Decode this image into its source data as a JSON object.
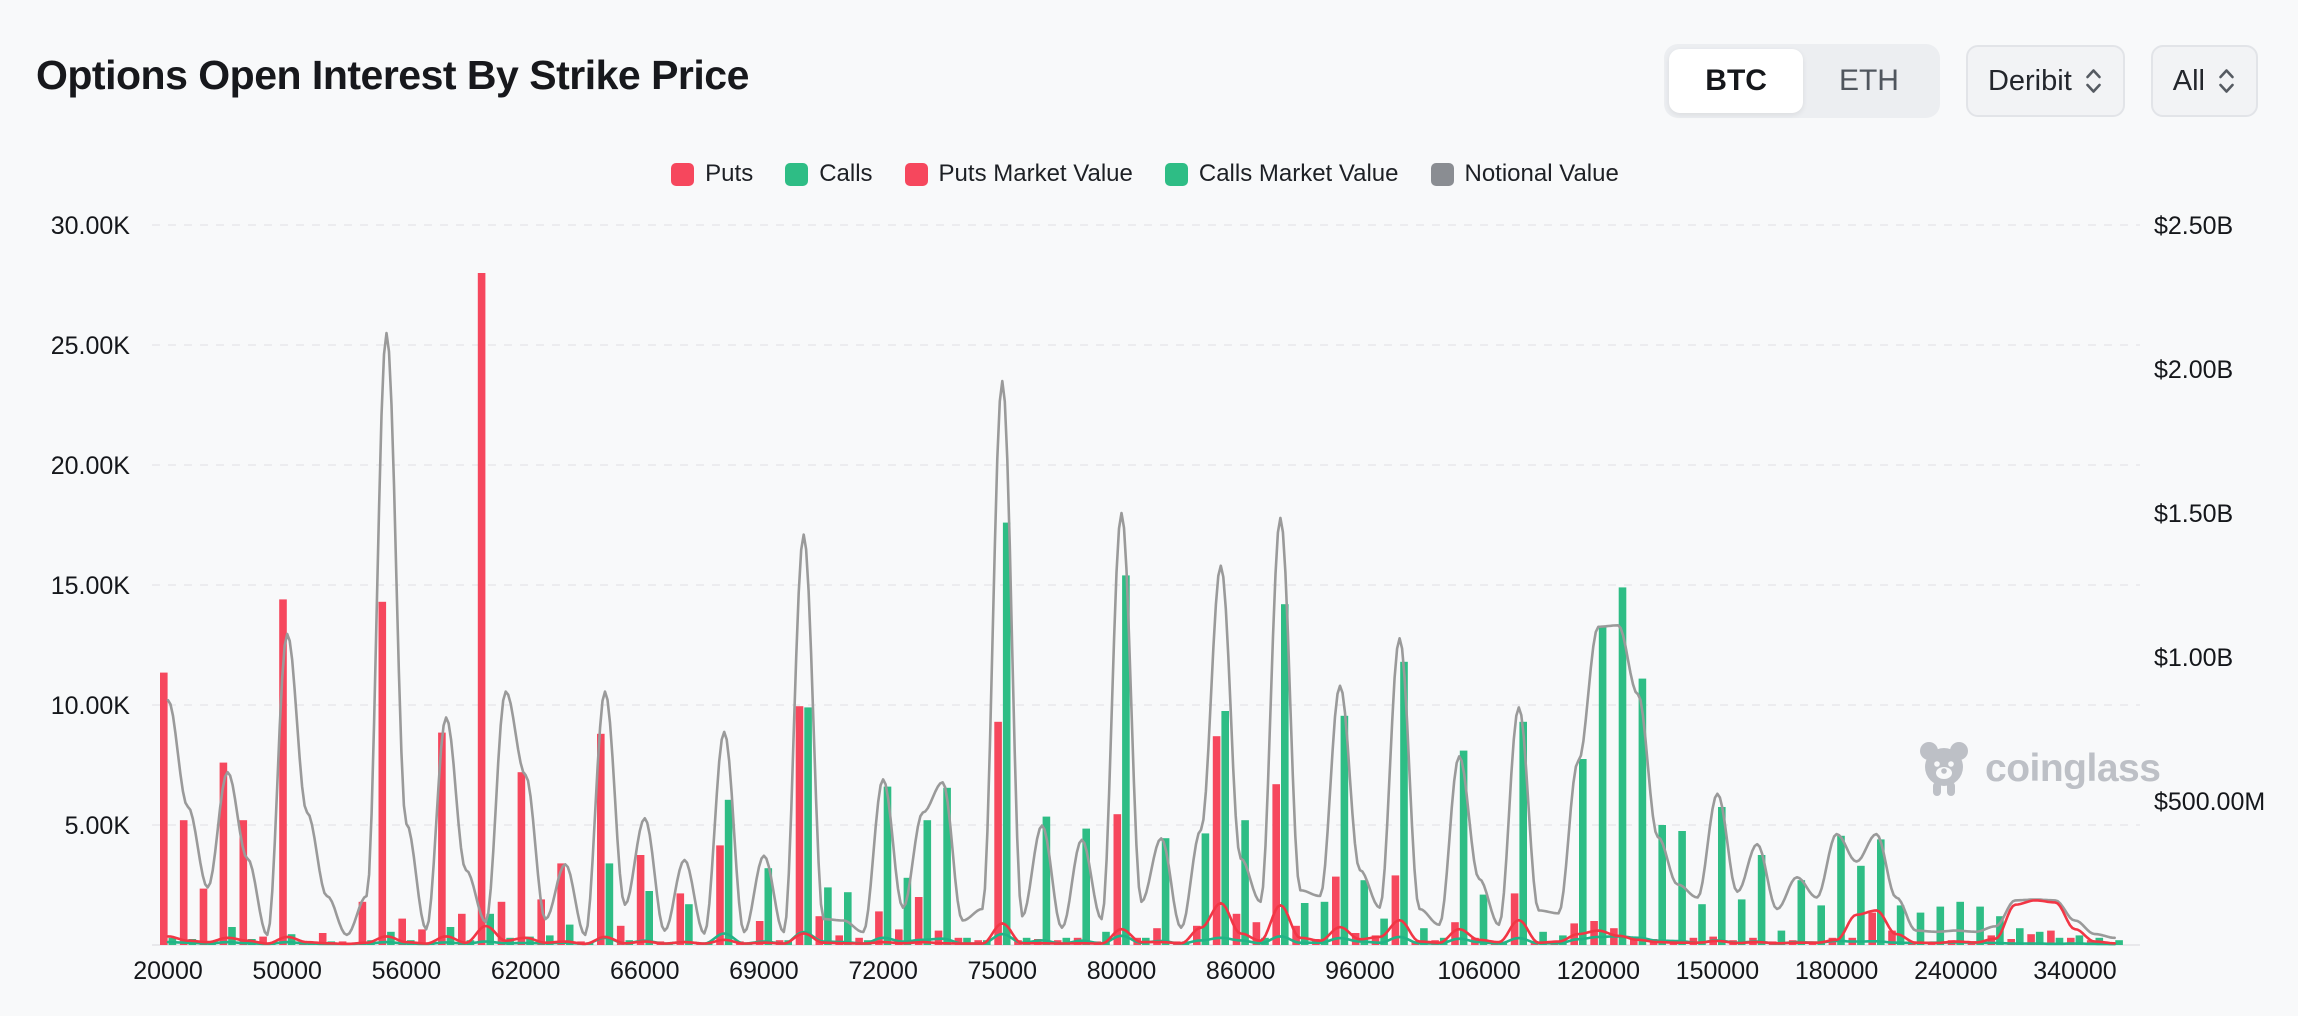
{
  "page": {
    "background": "#f8f9fa"
  },
  "header": {
    "title": "Options Open Interest By Strike Price",
    "asset_toggle": {
      "options": [
        "BTC",
        "ETH"
      ],
      "active": "BTC"
    },
    "exchange_dropdown": {
      "value": "Deribit"
    },
    "range_dropdown": {
      "value": "All"
    }
  },
  "legend": {
    "items": [
      {
        "label": "Puts",
        "color": "#F6475D"
      },
      {
        "label": "Calls",
        "color": "#2EBD85"
      },
      {
        "label": "Puts Market Value",
        "color": "#F6475D"
      },
      {
        "label": "Calls Market Value",
        "color": "#2EBD85"
      },
      {
        "label": "Notional Value",
        "color": "#8A8D92"
      }
    ]
  },
  "watermark": {
    "text": "coinglass"
  },
  "chart_data": {
    "type": "bar",
    "combo": "grouped bars (open interest, left axis) + smooth lines (market/notional value, right axis)",
    "title": "Options Open Interest By Strike Price",
    "num_categories": 99,
    "label_interval": 6,
    "x_tick_labels": [
      "20000",
      "50000",
      "56000",
      "62000",
      "66000",
      "69000",
      "72000",
      "75000",
      "80000",
      "86000",
      "96000",
      "106000",
      "120000",
      "150000",
      "180000",
      "240000",
      "340000"
    ],
    "left_axis": {
      "ticks": [
        "30.00K",
        "25.00K",
        "20.00K",
        "15.00K",
        "10.00K",
        "5.00K"
      ],
      "tick_values_k": [
        30,
        25,
        20,
        15,
        10,
        5
      ],
      "max_k": 30,
      "unit": "contracts"
    },
    "right_axis": {
      "ticks": [
        "$2.50B",
        "$2.00B",
        "$1.50B",
        "$1.00B",
        "$500.00M"
      ],
      "tick_values_musd": [
        2500,
        2000,
        1500,
        1000,
        500
      ],
      "max_musd": 2500,
      "unit": "USD"
    },
    "grid": "horizontal dashed lines for left-axis ticks",
    "legend_position": "top center",
    "series": [
      {
        "name": "Puts",
        "type": "bar",
        "axis": "left",
        "unit": "K contracts",
        "color": "#F6475D",
        "values": [
          11.35,
          5.2,
          2.35,
          7.6,
          5.2,
          0.35,
          14.4,
          0.1,
          0.5,
          0.15,
          1.8,
          14.3,
          1.1,
          0.65,
          8.85,
          1.3,
          28,
          1.8,
          7.2,
          1.9,
          3.4,
          0.15,
          8.8,
          0.8,
          3.75,
          0.15,
          2.15,
          0.1,
          4.15,
          0.15,
          1,
          0.2,
          9.95,
          1.2,
          0.4,
          0.3,
          1.4,
          0.65,
          2,
          0.6,
          0.3,
          0.2,
          9.3,
          0.2,
          0.25,
          0.2,
          0.3,
          0.15,
          5.45,
          0.3,
          0.7,
          0.15,
          0.8,
          8.7,
          1.3,
          0.95,
          6.7,
          0.8,
          0.25,
          2.85,
          0.5,
          0.4,
          2.9,
          0.15,
          0.2,
          0.95,
          0.3,
          0.1,
          2.15,
          0.1,
          0.15,
          0.9,
          1,
          0.7,
          0.3,
          0.25,
          0.2,
          0.3,
          0.35,
          0.2,
          0.3,
          0.15,
          0.2,
          0.15,
          0.3,
          0.3,
          1.35,
          0.6,
          0.15,
          0.1,
          0.2,
          0.15,
          0.4,
          0.25,
          0.45,
          0.6,
          0.3,
          0.2,
          0.1
        ]
      },
      {
        "name": "Calls",
        "type": "bar",
        "axis": "left",
        "unit": "K contracts",
        "color": "#2EBD85",
        "values": [
          0.3,
          0.25,
          0.1,
          0.75,
          0.25,
          0.1,
          0.45,
          0.1,
          0.15,
          0.1,
          0.2,
          0.55,
          0.2,
          0.1,
          0.75,
          0.2,
          1.3,
          0.3,
          0.35,
          0.4,
          0.85,
          0.1,
          3.4,
          0.2,
          2.25,
          0.1,
          1.7,
          0.1,
          6.05,
          0.1,
          3.2,
          0.2,
          9.9,
          2.4,
          2.2,
          0.2,
          6.6,
          2.8,
          5.2,
          6.55,
          0.3,
          0.2,
          17.6,
          0.3,
          5.35,
          0.3,
          4.85,
          0.55,
          15.4,
          0.3,
          4.45,
          0.15,
          4.65,
          9.75,
          5.2,
          0.3,
          14.2,
          1.75,
          1.8,
          9.55,
          2.7,
          1.1,
          11.8,
          0.7,
          0.3,
          8.1,
          2.1,
          0.1,
          9.3,
          0.55,
          0.4,
          7.75,
          13.25,
          14.9,
          11.1,
          5,
          4.75,
          1.7,
          5.75,
          1.9,
          3.75,
          0.6,
          2.7,
          1.65,
          4.55,
          3.3,
          4.4,
          1.65,
          1.35,
          1.6,
          1.8,
          1.6,
          1.2,
          0.7,
          0.55,
          0.3,
          0.4,
          0.3,
          0.2
        ]
      },
      {
        "name": "Puts Market Value",
        "type": "line",
        "axis": "right",
        "unit": "$M",
        "color": "#F23645",
        "values": [
          30,
          15,
          10,
          25,
          15,
          5,
          28,
          10,
          6,
          4,
          8,
          30,
          10,
          5,
          30,
          8,
          66,
          15,
          25,
          8,
          12,
          4,
          28,
          6,
          12,
          5,
          10,
          5,
          18,
          5,
          8,
          5,
          40,
          8,
          6,
          5,
          10,
          6,
          10,
          6,
          5,
          5,
          75,
          6,
          6,
          5,
          6,
          5,
          55,
          10,
          10,
          6,
          60,
          145,
          40,
          15,
          138,
          25,
          15,
          62,
          20,
          28,
          86,
          12,
          8,
          55,
          18,
          10,
          86,
          8,
          12,
          38,
          50,
          32,
          18,
          10,
          8,
          8,
          14,
          7,
          10,
          6,
          8,
          8,
          18,
          105,
          120,
          38,
          8,
          7,
          12,
          9,
          22,
          140,
          155,
          148,
          55,
          12,
          6
        ]
      },
      {
        "name": "Calls Market Value",
        "type": "line",
        "axis": "right",
        "unit": "$M",
        "color": "#21B487",
        "values": [
          10,
          8,
          5,
          10,
          6,
          4,
          10,
          5,
          4,
          4,
          5,
          10,
          5,
          4,
          9,
          5,
          12,
          6,
          7,
          6,
          8,
          4,
          25,
          6,
          15,
          5,
          10,
          5,
          40,
          5,
          12,
          5,
          45,
          12,
          10,
          5,
          25,
          12,
          18,
          22,
          5,
          5,
          38,
          8,
          16,
          5,
          15,
          6,
          32,
          8,
          14,
          5,
          16,
          25,
          16,
          6,
          30,
          8,
          8,
          24,
          12,
          8,
          28,
          6,
          5,
          22,
          10,
          5,
          24,
          6,
          6,
          20,
          28,
          30,
          25,
          15,
          14,
          8,
          16,
          8,
          12,
          5,
          10,
          8,
          14,
          12,
          13,
          8,
          7,
          8,
          9,
          8,
          7,
          5,
          5,
          4,
          5,
          4,
          3
        ]
      },
      {
        "name": "Notional Value",
        "type": "line",
        "axis": "right",
        "unit": "$M",
        "color": "#9A9A9A",
        "values": [
          850,
          480,
          200,
          600,
          300,
          35,
          1080,
          460,
          170,
          35,
          170,
          2125,
          420,
          55,
          790,
          260,
          80,
          880,
          590,
          90,
          280,
          35,
          880,
          140,
          440,
          50,
          295,
          40,
          740,
          45,
          310,
          45,
          1425,
          90,
          85,
          45,
          575,
          130,
          460,
          565,
          85,
          125,
          1958,
          100,
          415,
          60,
          365,
          90,
          1500,
          150,
          370,
          60,
          400,
          1317,
          300,
          150,
          1483,
          190,
          170,
          900,
          260,
          130,
          1065,
          125,
          70,
          655,
          230,
          70,
          825,
          120,
          110,
          640,
          1105,
          1110,
          870,
          375,
          210,
          165,
          525,
          185,
          350,
          125,
          235,
          165,
          385,
          290,
          385,
          165,
          50,
          46,
          50,
          46,
          65,
          155,
          158,
          155,
          85,
          38,
          25
        ]
      }
    ]
  }
}
